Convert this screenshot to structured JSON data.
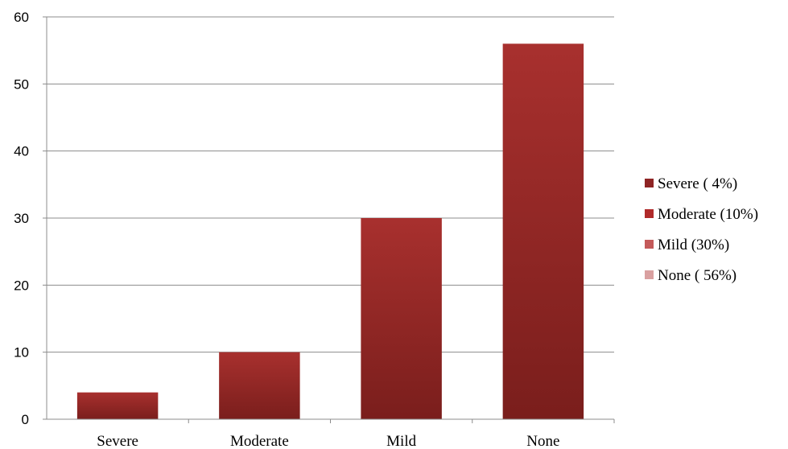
{
  "chart_data": {
    "type": "bar",
    "categories": [
      "Severe",
      "Moderate",
      "Mild",
      "None"
    ],
    "values": [
      4,
      10,
      30,
      56
    ],
    "ylim": [
      0,
      60
    ],
    "yticks": [
      0,
      10,
      20,
      30,
      40,
      50,
      60
    ],
    "grid": true,
    "legend_position": "right",
    "legend": [
      {
        "label": "Severe ( 4%)",
        "color": "#8e2424"
      },
      {
        "label": "Moderate (10%)",
        "color": "#b02a2a"
      },
      {
        "label": "Mild (30%)",
        "color": "#c45a5a"
      },
      {
        "label": "None ( 56%)",
        "color": "#d9a0a0"
      }
    ],
    "bar_color_top": "#a8302e",
    "bar_color_bottom": "#7a1e1c"
  }
}
